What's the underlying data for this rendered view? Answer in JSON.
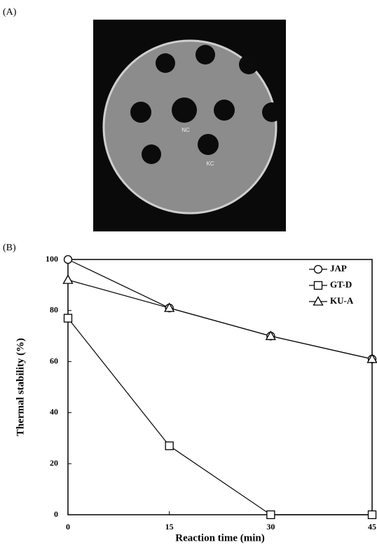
{
  "panels": [
    {
      "label": "(A)",
      "plate_labels": [
        "NC",
        "KC"
      ]
    },
    {
      "label": "(B)"
    }
  ],
  "chart_data": {
    "type": "line",
    "x_label": "Reaction time (min)",
    "y_label": "Thermal stability (%)",
    "x": [
      0,
      15,
      30,
      45
    ],
    "series": [
      {
        "name": "JAP",
        "color": "#000000",
        "marker": "circle",
        "values": [
          100,
          81,
          70,
          61
        ]
      },
      {
        "name": "GT-D",
        "color": "#000000",
        "marker": "square",
        "values": [
          77,
          27,
          0,
          0
        ]
      },
      {
        "name": "KU-A",
        "color": "#000000",
        "marker": "triangle",
        "values": [
          92,
          81,
          70,
          61
        ]
      }
    ],
    "xlim": [
      0,
      45
    ],
    "xticks": [
      0,
      15,
      30,
      45
    ],
    "ylim": [
      0,
      100
    ],
    "yticks": [
      0,
      20,
      40,
      60,
      80,
      100
    ],
    "grid": false,
    "legend": "upper right"
  }
}
